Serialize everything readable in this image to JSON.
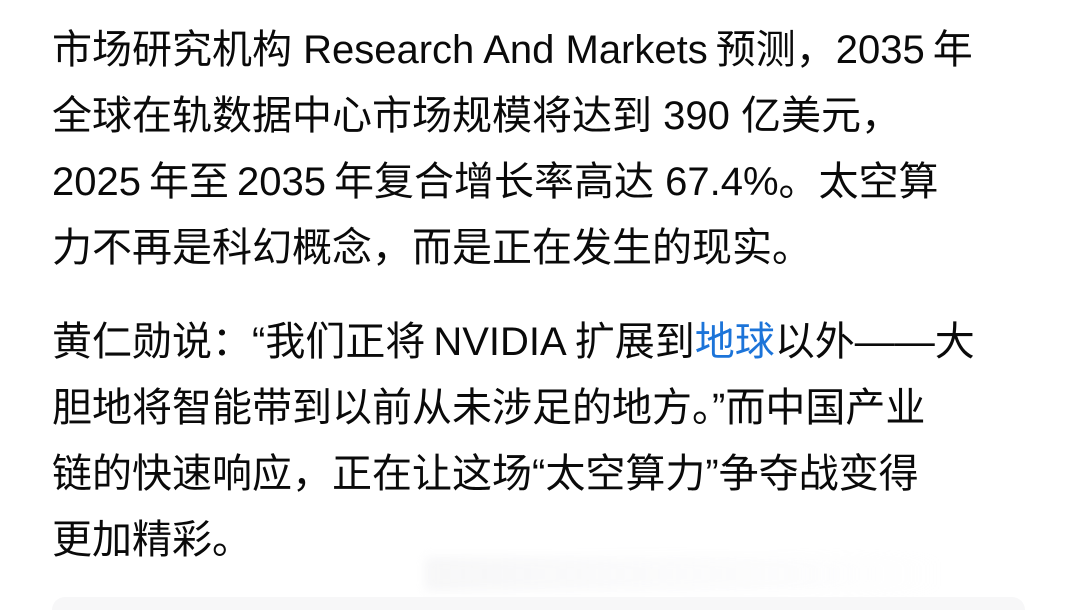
{
  "page": {
    "background_color": "#ffffff",
    "text_color": "#0a0a0a",
    "link_color": "#1c74d9",
    "bottom_card_color": "#f7f7f8"
  },
  "article": {
    "paragraph1": "市场研究机构 Research And Markets 预测，2035 年\n全球在轨数据中心市场规模将达到 390 亿美元，\n2025 年至 2035 年复合增长率高达 67.4%。太空算\n力不再是科幻概念，而是正在发生的现实。",
    "paragraph2": {
      "before_link": "黄仁勋说：“我们正将 NVIDIA 扩展到",
      "link_text": "地球",
      "after_link": "以外——大\n胆地将智能带到以前从未涉足的地方。”而中国产业\n链的快速响应，正在让这场“太空算力”争夺战变得\n更加精彩。"
    }
  }
}
